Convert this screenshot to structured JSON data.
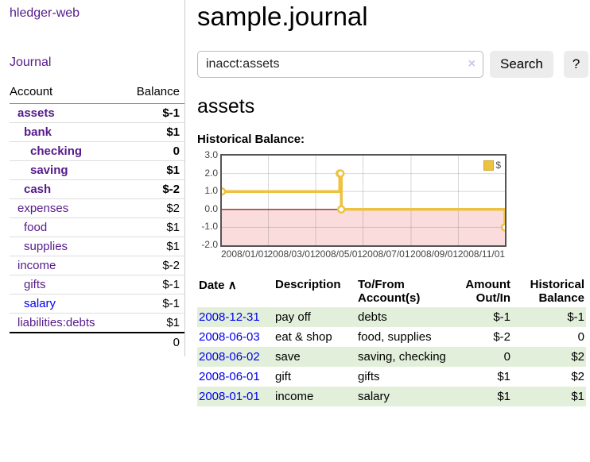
{
  "colors": {
    "link_purple": "#551a8b",
    "link_blue": "#0000ee",
    "negative": "#8f1b1b",
    "negative_muted": "#c06766",
    "row_green": "#e2efda",
    "series_yellow": "#edc240",
    "negative_region_pink": "#fbdcdc",
    "zero_line_red": "#8b0000"
  },
  "sidebar": {
    "brand": "hledger-web",
    "nav_journal": "Journal",
    "headers": {
      "account": "Account",
      "balance": "Balance"
    },
    "accounts": [
      {
        "name": "assets",
        "indent": 1,
        "bold": true,
        "link": "purple",
        "balance": "$-1",
        "balance_style": "negative"
      },
      {
        "name": "bank",
        "indent": 2,
        "bold": true,
        "link": "purple",
        "balance": "$1",
        "balance_style": "normal"
      },
      {
        "name": "checking",
        "indent": 3,
        "bold": true,
        "link": "purple",
        "balance": "0",
        "balance_style": "normal"
      },
      {
        "name": "saving",
        "indent": 3,
        "bold": true,
        "link": "purple",
        "balance": "$1",
        "balance_style": "normal"
      },
      {
        "name": "cash",
        "indent": 2,
        "bold": true,
        "link": "purple",
        "balance": "$-2",
        "balance_style": "negative"
      },
      {
        "name": "expenses",
        "indent": 1,
        "bold": false,
        "link": "purple",
        "balance": "$2",
        "balance_style": "normal"
      },
      {
        "name": "food",
        "indent": 2,
        "bold": false,
        "link": "purple",
        "balance": "$1",
        "balance_style": "normal"
      },
      {
        "name": "supplies",
        "indent": 2,
        "bold": false,
        "link": "purple",
        "balance": "$1",
        "balance_style": "normal"
      },
      {
        "name": "income",
        "indent": 1,
        "bold": false,
        "link": "purple",
        "balance": "$-2",
        "balance_style": "negative-muted"
      },
      {
        "name": "gifts",
        "indent": 2,
        "bold": false,
        "link": "purple",
        "balance": "$-1",
        "balance_style": "negative-muted"
      },
      {
        "name": "salary",
        "indent": 2,
        "bold": false,
        "link": "blue",
        "balance": "$-1",
        "balance_style": "negative-muted"
      },
      {
        "name": "liabilities:debts",
        "indent": 1,
        "bold": false,
        "link": "purple",
        "balance": "$1",
        "balance_style": "normal"
      }
    ],
    "total": "0"
  },
  "main": {
    "title": "sample.journal",
    "search": {
      "value": "inacct:assets",
      "clear_icon": "×",
      "search_button": "Search",
      "help_button": "?"
    },
    "account_heading": "assets",
    "chart_title": "Historical Balance:"
  },
  "chart_data": {
    "type": "line",
    "step": true,
    "title": "Historical Balance",
    "x_range": [
      "2008-01-01",
      "2008-12-31"
    ],
    "x_ticks": [
      {
        "date": "2008-01-01",
        "label": "2008/01/01"
      },
      {
        "date": "2008-03-01",
        "label": "2008/03/01"
      },
      {
        "date": "2008-05-01",
        "label": "2008/05/01"
      },
      {
        "date": "2008-07-01",
        "label": "2008/07/01"
      },
      {
        "date": "2008-09-01",
        "label": "2008/09/01"
      },
      {
        "date": "2008-11-01",
        "label": "2008/11/01"
      }
    ],
    "ylim": [
      -2,
      3
    ],
    "y_ticks": [
      {
        "value": 3,
        "label": "3.0"
      },
      {
        "value": 2,
        "label": "2.0"
      },
      {
        "value": 1,
        "label": "1.0"
      },
      {
        "value": 0,
        "label": "0.0"
      },
      {
        "value": -1,
        "label": "-1.0"
      },
      {
        "value": -2,
        "label": "-2.0"
      }
    ],
    "legend": {
      "label": "$",
      "position": "top-right"
    },
    "grid": true,
    "negative_region_shaded": true,
    "series": [
      {
        "name": "$",
        "points": [
          {
            "date": "2008-01-01",
            "value": 1
          },
          {
            "date": "2008-06-01",
            "value": 2
          },
          {
            "date": "2008-06-02",
            "value": 2
          },
          {
            "date": "2008-06-03",
            "value": 0
          },
          {
            "date": "2008-12-31",
            "value": -1
          }
        ]
      }
    ]
  },
  "register": {
    "headers": {
      "date": "Date",
      "sort_icon": "∧",
      "description": "Description",
      "accounts": "To/From Account(s)",
      "amount": "Amount Out/In",
      "balance": "Historical Balance"
    },
    "rows": [
      {
        "date": "2008-12-31",
        "description": "pay off",
        "accounts": "debts",
        "amount": "$-1",
        "amount_negative": true,
        "balance": "$-1",
        "balance_negative": true,
        "green": true
      },
      {
        "date": "2008-06-03",
        "description": "eat & shop",
        "accounts": "food, supplies",
        "amount": "$-2",
        "amount_negative": true,
        "balance": "0",
        "balance_negative": false,
        "green": false
      },
      {
        "date": "2008-06-02",
        "description": "save",
        "accounts": "saving, checking",
        "amount": "0",
        "amount_negative": false,
        "balance": "$2",
        "balance_negative": false,
        "green": true
      },
      {
        "date": "2008-06-01",
        "description": "gift",
        "accounts": "gifts",
        "amount": "$1",
        "amount_negative": false,
        "balance": "$2",
        "balance_negative": false,
        "green": false
      },
      {
        "date": "2008-01-01",
        "description": "income",
        "accounts": "salary",
        "amount": "$1",
        "amount_negative": false,
        "balance": "$1",
        "balance_negative": false,
        "green": true
      }
    ]
  }
}
